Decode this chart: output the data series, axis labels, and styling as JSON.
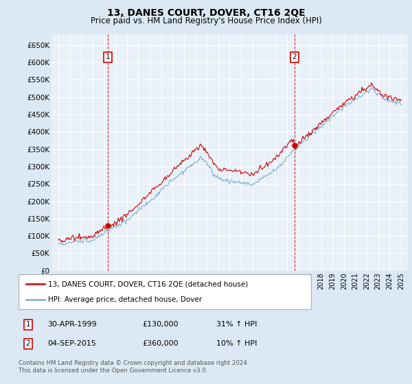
{
  "title": "13, DANES COURT, DOVER, CT16 2QE",
  "subtitle": "Price paid vs. HM Land Registry's House Price Index (HPI)",
  "legend_label_red": "13, DANES COURT, DOVER, CT16 2QE (detached house)",
  "legend_label_blue": "HPI: Average price, detached house, Dover",
  "annotation1_date": "30-APR-1999",
  "annotation1_price": 130000,
  "annotation1_hpi": "31% ↑ HPI",
  "annotation2_date": "04-SEP-2015",
  "annotation2_price": 360000,
  "annotation2_hpi": "10% ↑ HPI",
  "footer": "Contains HM Land Registry data © Crown copyright and database right 2024.\nThis data is licensed under the Open Government Licence v3.0.",
  "red_color": "#cc0000",
  "blue_color": "#7aadcf",
  "background_color": "#dce9f5",
  "plot_bg_color": "#e8f0f8",
  "grid_color": "#c8d8e8",
  "annotation_box_color": "#cc0000",
  "ylim": [
    0,
    680000
  ],
  "ytick_step": 50000,
  "sale1_year": 1999.33,
  "sale2_year": 2015.67
}
